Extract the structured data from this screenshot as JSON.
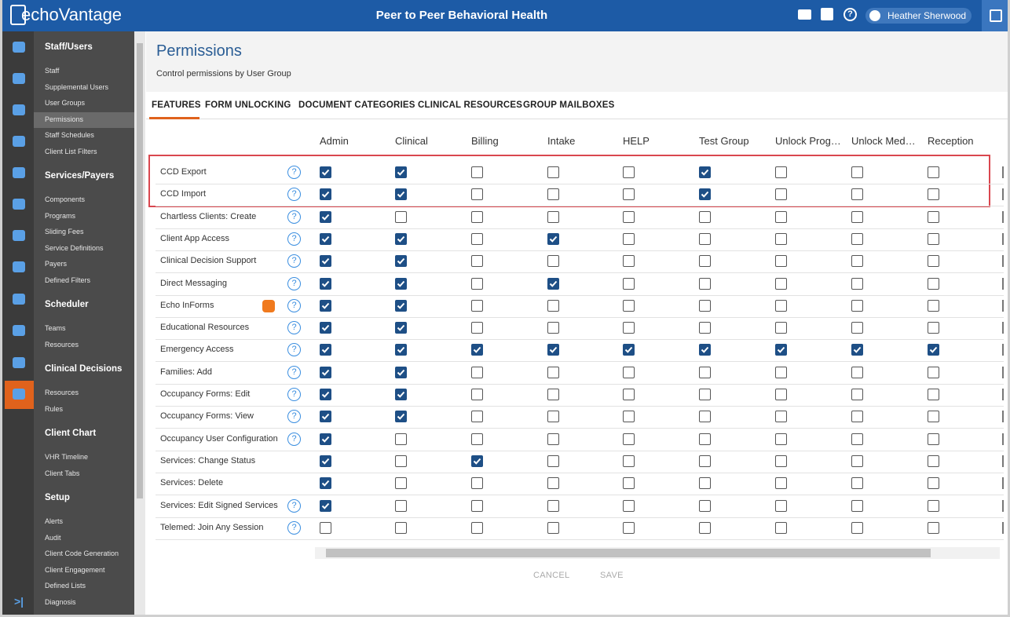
{
  "header": {
    "logo": "echoVantage",
    "title": "Peer to Peer Behavioral Health",
    "user": "Heather Sherwood"
  },
  "sidebar": [
    {
      "heading": "Staff/Users",
      "items": [
        "Staff",
        "Supplemental Users",
        "User Groups",
        "Permissions",
        "Staff Schedules",
        "Client List Filters"
      ]
    },
    {
      "heading": "Services/Payers",
      "items": [
        "Components",
        "Programs",
        "Sliding Fees",
        "Service Definitions",
        "Payers",
        "Defined Filters"
      ]
    },
    {
      "heading": "Scheduler",
      "items": [
        "Teams",
        "Resources"
      ]
    },
    {
      "heading": "Clinical Decisions",
      "items": [
        "Resources",
        "Rules"
      ]
    },
    {
      "heading": "Client Chart",
      "items": [
        "VHR Timeline",
        "Client Tabs"
      ]
    },
    {
      "heading": "Setup",
      "items": [
        "Alerts",
        "Audit",
        "Client Code Generation",
        "Client Engagement",
        "Defined Lists",
        "Diagnosis"
      ]
    }
  ],
  "page": {
    "title": "Permissions",
    "subtitle": "Control permissions by User Group"
  },
  "tabs": [
    "FEATURES",
    "FORM UNLOCKING",
    "DOCUMENT CATEGORIES",
    "CLINICAL RESOURCES",
    "GROUP MAILBOXES"
  ],
  "columns": [
    "Admin",
    "Clinical",
    "Billing",
    "Intake",
    "HELP",
    "Test Group",
    "Unlock Prog…",
    "Unlock Med…",
    "Reception"
  ],
  "rows": [
    {
      "label": "CCD Export",
      "help": true,
      "addon": false,
      "checked": [
        true,
        true,
        false,
        false,
        false,
        true,
        false,
        false,
        false
      ]
    },
    {
      "label": "CCD Import",
      "help": true,
      "addon": false,
      "checked": [
        true,
        true,
        false,
        false,
        false,
        true,
        false,
        false,
        false
      ]
    },
    {
      "label": "Chartless Clients: Create",
      "help": true,
      "addon": false,
      "checked": [
        true,
        false,
        false,
        false,
        false,
        false,
        false,
        false,
        false
      ]
    },
    {
      "label": "Client App Access",
      "help": true,
      "addon": false,
      "checked": [
        true,
        true,
        false,
        true,
        false,
        false,
        false,
        false,
        false
      ]
    },
    {
      "label": "Clinical Decision Support",
      "help": true,
      "addon": false,
      "checked": [
        true,
        true,
        false,
        false,
        false,
        false,
        false,
        false,
        false
      ]
    },
    {
      "label": "Direct Messaging",
      "help": true,
      "addon": false,
      "checked": [
        true,
        true,
        false,
        true,
        false,
        false,
        false,
        false,
        false
      ]
    },
    {
      "label": "Echo InForms",
      "help": true,
      "addon": true,
      "checked": [
        true,
        true,
        false,
        false,
        false,
        false,
        false,
        false,
        false
      ]
    },
    {
      "label": "Educational Resources",
      "help": true,
      "addon": false,
      "checked": [
        true,
        true,
        false,
        false,
        false,
        false,
        false,
        false,
        false
      ]
    },
    {
      "label": "Emergency Access",
      "help": true,
      "addon": false,
      "checked": [
        true,
        true,
        true,
        true,
        true,
        true,
        true,
        true,
        true
      ]
    },
    {
      "label": "Families: Add",
      "help": true,
      "addon": false,
      "checked": [
        true,
        true,
        false,
        false,
        false,
        false,
        false,
        false,
        false
      ]
    },
    {
      "label": "Occupancy Forms: Edit",
      "help": true,
      "addon": false,
      "checked": [
        true,
        true,
        false,
        false,
        false,
        false,
        false,
        false,
        false
      ]
    },
    {
      "label": "Occupancy Forms: View",
      "help": true,
      "addon": false,
      "checked": [
        true,
        true,
        false,
        false,
        false,
        false,
        false,
        false,
        false
      ]
    },
    {
      "label": "Occupancy User Configuration",
      "help": true,
      "addon": false,
      "checked": [
        true,
        false,
        false,
        false,
        false,
        false,
        false,
        false,
        false
      ]
    },
    {
      "label": "Services: Change Status",
      "help": false,
      "addon": false,
      "checked": [
        true,
        false,
        true,
        false,
        false,
        false,
        false,
        false,
        false
      ]
    },
    {
      "label": "Services: Delete",
      "help": false,
      "addon": false,
      "checked": [
        true,
        false,
        false,
        false,
        false,
        false,
        false,
        false,
        false
      ]
    },
    {
      "label": "Services: Edit Signed Services",
      "help": true,
      "addon": false,
      "checked": [
        true,
        false,
        false,
        false,
        false,
        false,
        false,
        false,
        false
      ]
    },
    {
      "label": "Telemed: Join Any Session",
      "help": true,
      "addon": false,
      "checked": [
        false,
        false,
        false,
        false,
        false,
        false,
        false,
        false,
        false
      ]
    }
  ],
  "buttons": [
    "CANCEL",
    "SAVE"
  ]
}
